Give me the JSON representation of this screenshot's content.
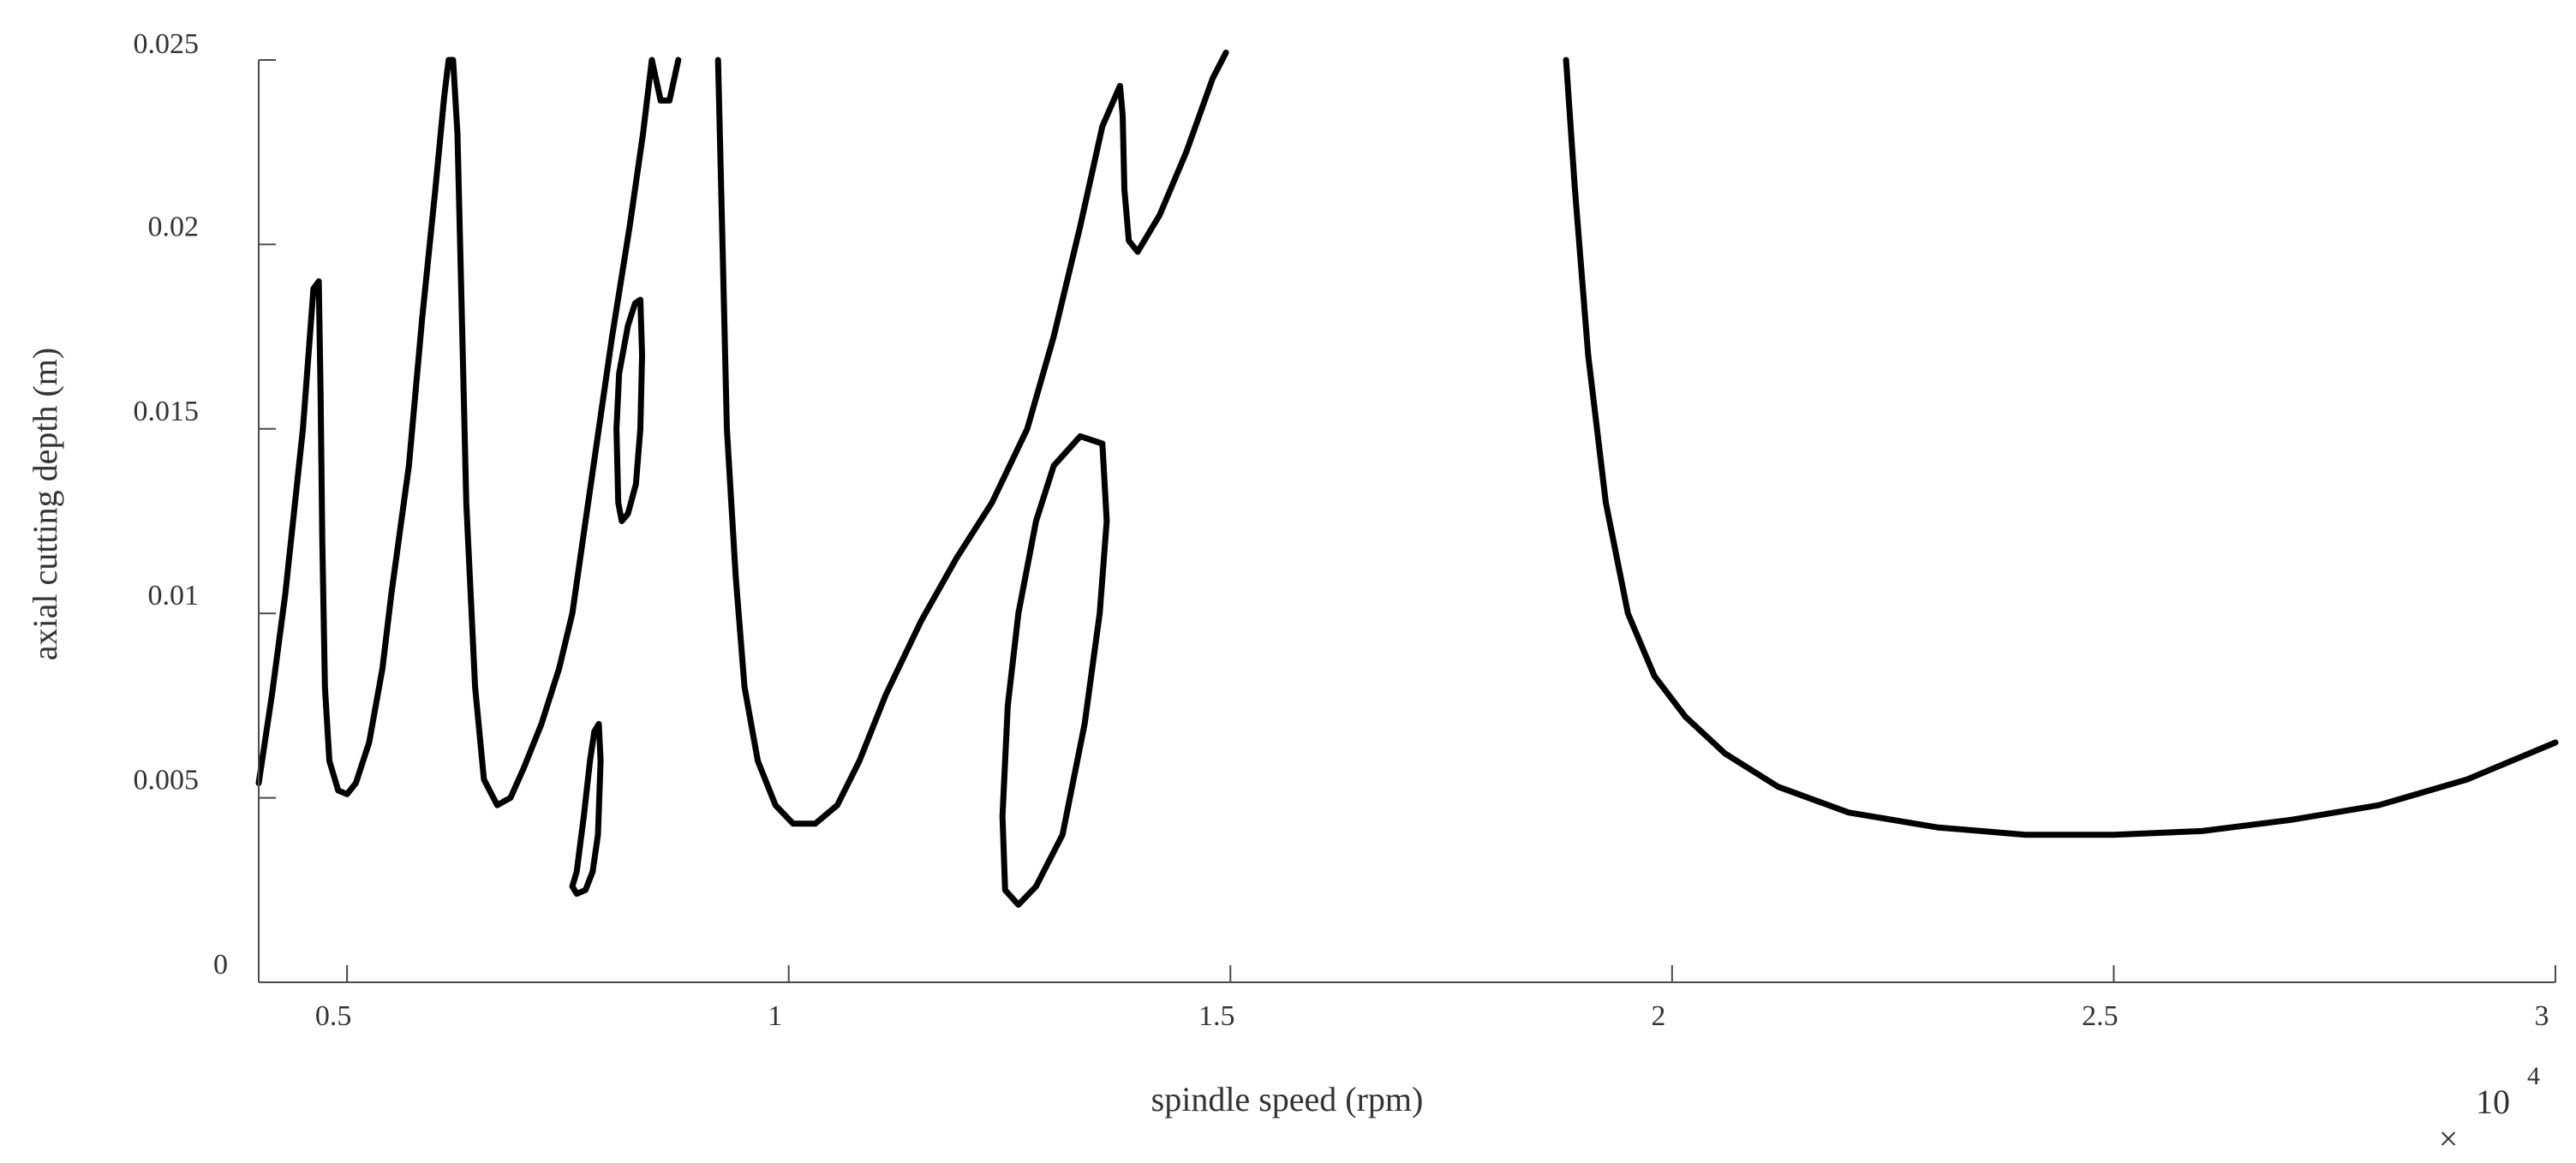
{
  "chart_data": {
    "type": "line",
    "xlabel": "spindle speed (rpm)",
    "ylabel": "axial cutting depth (m)",
    "x_multiplier_label": "10",
    "x_multiplier_exponent": "4",
    "xlim": [
      4000,
      30000
    ],
    "ylim": [
      0,
      0.025
    ],
    "grid": false,
    "x_ticks": [
      {
        "value": 5000,
        "label": "0.5"
      },
      {
        "value": 10000,
        "label": "1"
      },
      {
        "value": 15000,
        "label": "1.5"
      },
      {
        "value": 20000,
        "label": "2"
      },
      {
        "value": 25000,
        "label": "2.5"
      },
      {
        "value": 30000,
        "label": "3"
      }
    ],
    "y_ticks": [
      {
        "value": 0,
        "label": "0"
      },
      {
        "value": 0.005,
        "label": "0.005"
      },
      {
        "value": 0.01,
        "label": "0.01"
      },
      {
        "value": 0.015,
        "label": "0.015"
      },
      {
        "value": 0.02,
        "label": "0.02"
      },
      {
        "value": 0.025,
        "label": "0.025"
      }
    ],
    "series": [
      {
        "points": [
          [
            4000,
            0.0054
          ],
          [
            4150,
            0.0078
          ],
          [
            4300,
            0.0105
          ],
          [
            4500,
            0.015
          ],
          [
            4620,
            0.0188
          ],
          [
            4680,
            0.019
          ],
          [
            4700,
            0.016
          ],
          [
            4720,
            0.012
          ],
          [
            4750,
            0.008
          ],
          [
            4800,
            0.006
          ],
          [
            4900,
            0.0052
          ],
          [
            5000,
            0.0051
          ],
          [
            5100,
            0.0054
          ],
          [
            5250,
            0.0065
          ],
          [
            5400,
            0.0085
          ],
          [
            5500,
            0.0105
          ],
          [
            5700,
            0.014
          ],
          [
            5850,
            0.018
          ],
          [
            6000,
            0.0215
          ],
          [
            6100,
            0.024
          ],
          [
            6150,
            0.025
          ],
          [
            6200,
            0.025
          ],
          [
            6250,
            0.023
          ],
          [
            6300,
            0.018
          ],
          [
            6350,
            0.013
          ],
          [
            6450,
            0.008
          ],
          [
            6550,
            0.0055
          ],
          [
            6700,
            0.0048
          ],
          [
            6850,
            0.005
          ],
          [
            7000,
            0.0058
          ],
          [
            7200,
            0.007
          ],
          [
            7400,
            0.0085
          ],
          [
            7550,
            0.01
          ],
          [
            7700,
            0.0125
          ],
          [
            7850,
            0.015
          ],
          [
            8000,
            0.0175
          ],
          [
            8200,
            0.0205
          ],
          [
            8350,
            0.023
          ],
          [
            8450,
            0.025
          ],
          [
            8550,
            0.0239
          ],
          [
            8650,
            0.0239
          ],
          [
            8750,
            0.025
          ]
        ]
      },
      {
        "points": [
          [
            9200,
            0.025
          ],
          [
            9250,
            0.02
          ],
          [
            9300,
            0.015
          ],
          [
            9400,
            0.011
          ],
          [
            9500,
            0.008
          ],
          [
            9650,
            0.006
          ],
          [
            9850,
            0.0048
          ],
          [
            10050,
            0.0043
          ],
          [
            10300,
            0.0043
          ],
          [
            10550,
            0.0048
          ],
          [
            10800,
            0.006
          ],
          [
            11100,
            0.0078
          ],
          [
            11500,
            0.0098
          ],
          [
            11900,
            0.0115
          ],
          [
            12300,
            0.013
          ],
          [
            12700,
            0.015
          ],
          [
            13000,
            0.0175
          ],
          [
            13300,
            0.0205
          ],
          [
            13550,
            0.0232
          ],
          [
            13750,
            0.0243
          ],
          [
            13780,
            0.0235
          ],
          [
            13800,
            0.0215
          ],
          [
            13850,
            0.0201
          ],
          [
            13950,
            0.0198
          ],
          [
            14200,
            0.0208
          ],
          [
            14500,
            0.0225
          ],
          [
            14800,
            0.0245
          ],
          [
            14950,
            0.0252
          ]
        ]
      },
      {
        "points": [
          [
            18800,
            0.025
          ],
          [
            18900,
            0.0215
          ],
          [
            19050,
            0.017
          ],
          [
            19250,
            0.013
          ],
          [
            19500,
            0.01
          ],
          [
            19800,
            0.0083
          ],
          [
            20150,
            0.0072
          ],
          [
            20600,
            0.0062
          ],
          [
            21200,
            0.0053
          ],
          [
            22000,
            0.0046
          ],
          [
            23000,
            0.0042
          ],
          [
            24000,
            0.004
          ],
          [
            25000,
            0.004
          ],
          [
            26000,
            0.0041
          ],
          [
            27000,
            0.0044
          ],
          [
            28000,
            0.0048
          ],
          [
            29000,
            0.0055
          ],
          [
            30000,
            0.0065
          ]
        ]
      },
      {
        "closed": true,
        "points": [
          [
            7550,
            0.0026
          ],
          [
            7600,
            0.003
          ],
          [
            7680,
            0.0045
          ],
          [
            7750,
            0.006
          ],
          [
            7800,
            0.0068
          ],
          [
            7850,
            0.007
          ],
          [
            7870,
            0.006
          ],
          [
            7840,
            0.004
          ],
          [
            7780,
            0.003
          ],
          [
            7700,
            0.0025
          ],
          [
            7600,
            0.0024
          ]
        ]
      },
      {
        "closed": true,
        "points": [
          [
            8070,
            0.013
          ],
          [
            8050,
            0.015
          ],
          [
            8080,
            0.0165
          ],
          [
            8180,
            0.0178
          ],
          [
            8260,
            0.0184
          ],
          [
            8320,
            0.0185
          ],
          [
            8340,
            0.017
          ],
          [
            8320,
            0.015
          ],
          [
            8270,
            0.0135
          ],
          [
            8180,
            0.0127
          ],
          [
            8110,
            0.0125
          ]
        ]
      },
      {
        "closed": true,
        "points": [
          [
            12450,
            0.0025
          ],
          [
            12420,
            0.0045
          ],
          [
            12480,
            0.0075
          ],
          [
            12600,
            0.01
          ],
          [
            12800,
            0.0125
          ],
          [
            13000,
            0.014
          ],
          [
            13300,
            0.0148
          ],
          [
            13550,
            0.0146
          ],
          [
            13600,
            0.0125
          ],
          [
            13520,
            0.01
          ],
          [
            13350,
            0.007
          ],
          [
            13100,
            0.004
          ],
          [
            12800,
            0.0026
          ],
          [
            12600,
            0.0021
          ]
        ]
      }
    ]
  }
}
